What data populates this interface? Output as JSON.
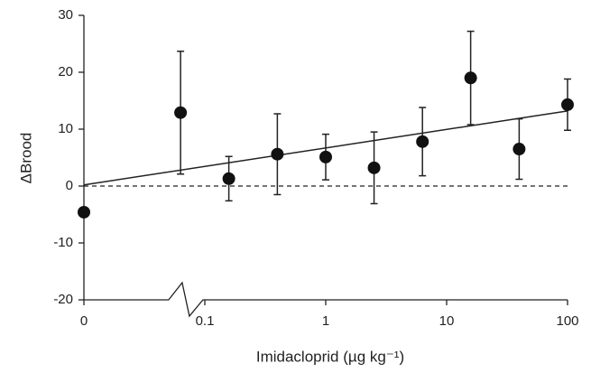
{
  "chart_data": {
    "type": "scatter",
    "x_label": "Imidacloprid (µg kg⁻¹)",
    "y_label": "ΔBrood",
    "x_scale": "log",
    "xlim": [
      0,
      100
    ],
    "xticks": [
      0,
      0.1,
      1,
      10,
      100
    ],
    "ylim": [
      -20,
      30
    ],
    "yticks": [
      -20,
      -10,
      0,
      10,
      20,
      30
    ],
    "series": [
      {
        "color": "#111111",
        "x": [
          0,
          0.063,
          0.158,
          0.398,
          1,
          2.51,
          6.31,
          15.8,
          39.8,
          100
        ],
        "values": [
          -4.6,
          12.9,
          1.3,
          5.6,
          5.1,
          3.2,
          7.8,
          19.0,
          6.5,
          14.3
        ],
        "errors": [
          null,
          10.8,
          3.9,
          7.1,
          4.0,
          6.3,
          6.0,
          8.2,
          5.3,
          4.5
        ]
      }
    ],
    "trend_line": {
      "x": [
        0,
        100
      ],
      "y": [
        0.2,
        13.2
      ]
    },
    "reference_line": 0
  }
}
